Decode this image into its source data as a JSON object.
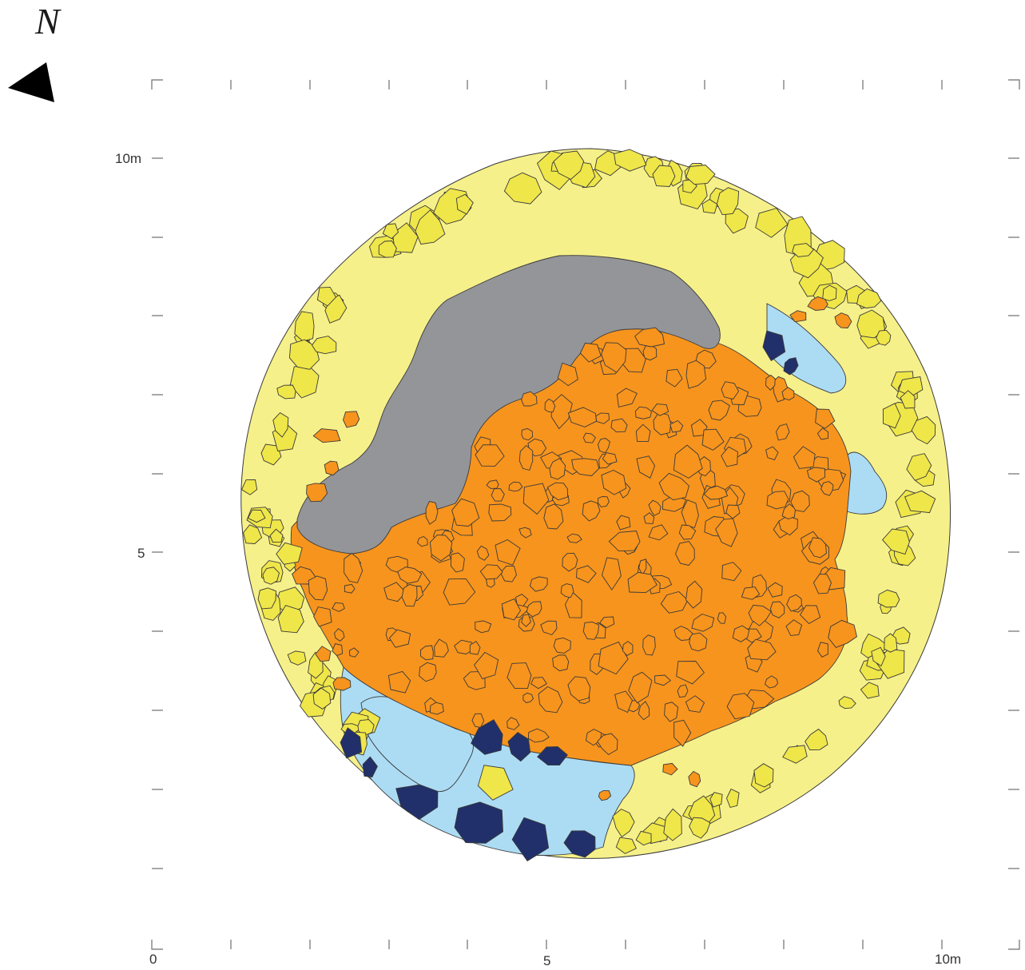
{
  "north_label": "N",
  "north_arrow_icon": "triangle-north-arrow",
  "axes": {
    "x_labels": {
      "zero": "0",
      "mid": "5",
      "end": "10m"
    },
    "y_labels": {
      "top": "10m",
      "mid": "5"
    }
  },
  "colors": {
    "outer_ring": "#f6f08a",
    "outer_stones": "#efe64a",
    "inner_floor": "#f7941d",
    "inner_stones": "#f7941d",
    "grey_deposit": "#939598",
    "blue_deposit": "#acdcf4",
    "dark_blue_stones": "#21306a",
    "stone_outline": "#3a3a3a",
    "ticks": "#6d6e71"
  }
}
